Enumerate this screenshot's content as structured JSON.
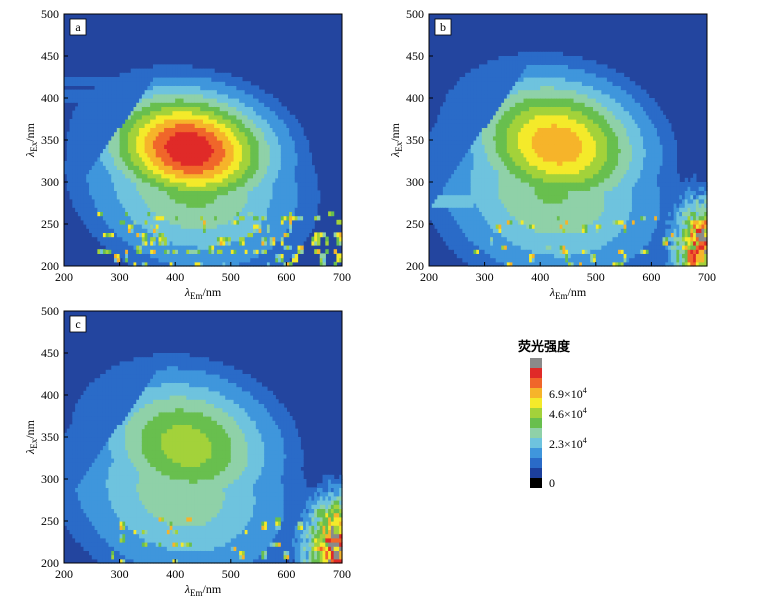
{
  "chart_data": [
    {
      "type": "heatmap",
      "panel_label": "a",
      "xlabel": {
        "symbol": "λ",
        "sub": "Em",
        "unit": "/nm"
      },
      "ylabel": {
        "symbol": "λ",
        "sub": "Ex",
        "unit": "/nm"
      },
      "xlim": [
        200,
        700
      ],
      "ylim": [
        200,
        500
      ],
      "xticks": [
        "200",
        "300",
        "400",
        "500",
        "600",
        "700"
      ],
      "yticks": [
        "200",
        "250",
        "300",
        "350",
        "400",
        "450",
        "500"
      ],
      "peaks": [
        {
          "em": 425,
          "ex": 340,
          "level": 0.95,
          "sem": 120,
          "sex": 60
        },
        {
          "em": 430,
          "ex": 300,
          "level": 0.45,
          "sem": 150,
          "sex": 90
        }
      ],
      "bands": [
        {
          "ex": 420,
          "em_from": 200,
          "em_to": 420,
          "level": 0.22
        },
        {
          "ex": 403,
          "em_from": 200,
          "em_to": 400,
          "level": 0.2
        }
      ],
      "scatter_region": {
        "em_from": 260,
        "em_to": 700,
        "ex_from": 200,
        "ex_to": 265,
        "density": 0.5
      },
      "tail": null
    },
    {
      "type": "heatmap",
      "panel_label": "b",
      "xlabel": {
        "symbol": "λ",
        "sub": "Em",
        "unit": "/nm"
      },
      "ylabel": {
        "symbol": "λ",
        "sub": "Ex",
        "unit": "/nm"
      },
      "xlim": [
        200,
        700
      ],
      "ylim": [
        200,
        500
      ],
      "xticks": [
        "200",
        "300",
        "400",
        "500",
        "600",
        "700"
      ],
      "yticks": [
        "200",
        "250",
        "300",
        "350",
        "400",
        "450",
        "500"
      ],
      "peaks": [
        {
          "em": 430,
          "ex": 345,
          "level": 0.75,
          "sem": 125,
          "sex": 70
        },
        {
          "em": 420,
          "ex": 290,
          "level": 0.42,
          "sem": 160,
          "sex": 95
        }
      ],
      "bands": [
        {
          "ex": 325,
          "em_from": 200,
          "em_to": 360,
          "level": 0.22
        },
        {
          "ex": 278,
          "em_from": 200,
          "em_to": 280,
          "level": 0.28
        }
      ],
      "scatter_region": {
        "em_from": 280,
        "em_to": 640,
        "ex_from": 200,
        "ex_to": 260,
        "density": 0.25
      },
      "tail": {
        "em": 700,
        "ex": 220,
        "level": 0.95,
        "sem": 55,
        "sex": 55
      }
    },
    {
      "type": "heatmap",
      "panel_label": "c",
      "xlabel": {
        "symbol": "λ",
        "sub": "Em",
        "unit": "/nm"
      },
      "ylabel": {
        "symbol": "λ",
        "sub": "Ex",
        "unit": "/nm"
      },
      "xlim": [
        200,
        700
      ],
      "ylim": [
        200,
        500
      ],
      "xticks": [
        "200",
        "300",
        "400",
        "500",
        "600",
        "700"
      ],
      "yticks": [
        "200",
        "250",
        "300",
        "350",
        "400",
        "450",
        "500"
      ],
      "peaks": [
        {
          "em": 420,
          "ex": 340,
          "level": 0.55,
          "sem": 130,
          "sex": 75
        },
        {
          "em": 410,
          "ex": 285,
          "level": 0.38,
          "sem": 160,
          "sex": 95
        }
      ],
      "bands": [
        {
          "ex": 290,
          "em_from": 200,
          "em_to": 350,
          "level": 0.2
        }
      ],
      "scatter_region": {
        "em_from": 270,
        "em_to": 640,
        "ex_from": 200,
        "ex_to": 255,
        "density": 0.2
      },
      "tail": {
        "em": 700,
        "ex": 220,
        "level": 1.0,
        "sem": 60,
        "sex": 55
      }
    }
  ],
  "legend": {
    "title": "荧光强度",
    "labels": [
      {
        "mantissa": "6.9",
        "exp": "4",
        "level": 0.75
      },
      {
        "mantissa": "4.6",
        "exp": "4",
        "level": 0.5
      },
      {
        "mantissa": "2.3",
        "exp": "4",
        "level": 0.25
      },
      {
        "zero": "0",
        "level": 0.0
      }
    ],
    "colors": [
      "#000000",
      "#1c3f9c",
      "#2a6bc8",
      "#3f96dc",
      "#6ec3de",
      "#8fd1a8",
      "#68bf4e",
      "#a3d23a",
      "#f4ea2a",
      "#f6b42a",
      "#f0662a",
      "#e02a28",
      "#8a8a8a"
    ]
  },
  "colors": {
    "background": "#23459f"
  }
}
